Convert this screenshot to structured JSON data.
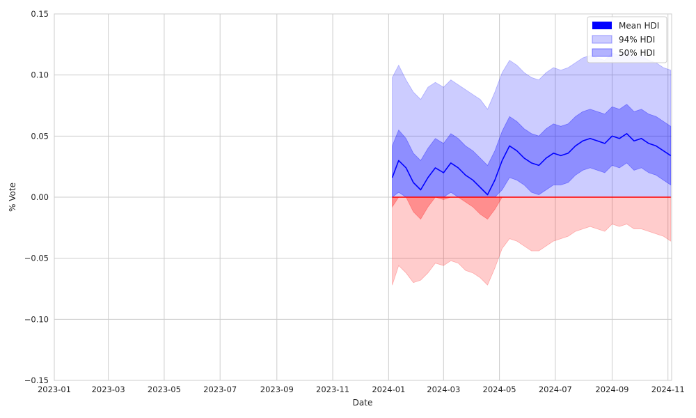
{
  "chart_data": {
    "type": "area",
    "title": "",
    "xlabel": "Date",
    "ylabel": "% Vote",
    "x_domain": [
      "2023-01-01",
      "2024-11-05"
    ],
    "ylim": [
      -0.15,
      0.15
    ],
    "yticks": [
      0.15,
      0.1,
      0.05,
      0.0,
      -0.05,
      -0.1,
      -0.15
    ],
    "ytick_labels": [
      "0.15",
      "0.10",
      "0.05",
      "0.00",
      "−0.05",
      "−0.10",
      "−0.15"
    ],
    "xticks": [
      "2023-01-01",
      "2023-03-01",
      "2023-05-01",
      "2023-07-01",
      "2023-09-01",
      "2023-11-01",
      "2024-01-01",
      "2024-03-01",
      "2024-05-01",
      "2024-07-01",
      "2024-09-01",
      "2024-11-01"
    ],
    "xtick_labels": [
      "2023-01",
      "2023-03",
      "2023-05",
      "2023-07",
      "2023-09",
      "2023-11",
      "2024-01",
      "2024-03",
      "2024-05",
      "2024-07",
      "2024-09",
      "2024-11"
    ],
    "grid": true,
    "legend_position": "top-right",
    "colors": {
      "positive": "#0000ff",
      "negative": "#ff0000",
      "grid": "#cccccc"
    },
    "legend": [
      {
        "label": "Mean HDI",
        "color": "#0000ff",
        "alpha": 1.0
      },
      {
        "label": "94% HDI",
        "color": "#0000ff",
        "alpha": 0.2
      },
      {
        "label": "50% HDI",
        "color": "#0000ff",
        "alpha": 0.3
      }
    ],
    "series": {
      "dates": [
        "2024-01-05",
        "2024-01-12",
        "2024-01-20",
        "2024-01-28",
        "2024-02-05",
        "2024-02-13",
        "2024-02-21",
        "2024-03-01",
        "2024-03-09",
        "2024-03-17",
        "2024-03-25",
        "2024-04-02",
        "2024-04-10",
        "2024-04-18",
        "2024-04-26",
        "2024-05-04",
        "2024-05-12",
        "2024-05-20",
        "2024-05-28",
        "2024-06-05",
        "2024-06-13",
        "2024-06-21",
        "2024-06-29",
        "2024-07-07",
        "2024-07-15",
        "2024-07-23",
        "2024-07-31",
        "2024-08-08",
        "2024-08-16",
        "2024-08-24",
        "2024-09-01",
        "2024-09-09",
        "2024-09-17",
        "2024-09-25",
        "2024-10-03",
        "2024-10-11",
        "2024-10-19",
        "2024-10-27",
        "2024-11-04"
      ],
      "mean": [
        0.016,
        0.03,
        0.024,
        0.012,
        0.006,
        0.016,
        0.024,
        0.02,
        0.028,
        0.024,
        0.018,
        0.014,
        0.008,
        0.002,
        0.014,
        0.03,
        0.042,
        0.038,
        0.032,
        0.028,
        0.026,
        0.032,
        0.036,
        0.034,
        0.036,
        0.042,
        0.046,
        0.048,
        0.046,
        0.044,
        0.05,
        0.048,
        0.052,
        0.046,
        0.048,
        0.044,
        0.042,
        0.038,
        0.034
      ],
      "hdi50_low": [
        -0.008,
        0.004,
        0.0,
        -0.012,
        -0.018,
        -0.008,
        0.0,
        -0.002,
        0.004,
        0.0,
        -0.004,
        -0.008,
        -0.014,
        -0.018,
        -0.01,
        0.006,
        0.016,
        0.014,
        0.01,
        0.004,
        0.002,
        0.006,
        0.01,
        0.01,
        0.012,
        0.018,
        0.022,
        0.024,
        0.022,
        0.02,
        0.026,
        0.024,
        0.028,
        0.022,
        0.024,
        0.02,
        0.018,
        0.014,
        0.01
      ],
      "hdi50_high": [
        0.042,
        0.055,
        0.048,
        0.036,
        0.03,
        0.04,
        0.048,
        0.044,
        0.052,
        0.048,
        0.042,
        0.038,
        0.032,
        0.026,
        0.038,
        0.054,
        0.066,
        0.062,
        0.056,
        0.052,
        0.05,
        0.056,
        0.06,
        0.058,
        0.06,
        0.066,
        0.07,
        0.072,
        0.07,
        0.068,
        0.074,
        0.072,
        0.076,
        0.07,
        0.072,
        0.068,
        0.066,
        0.062,
        0.058
      ],
      "hdi94_low": [
        -0.072,
        -0.056,
        -0.062,
        -0.07,
        -0.068,
        -0.062,
        -0.054,
        -0.056,
        -0.052,
        -0.054,
        -0.06,
        -0.062,
        -0.066,
        -0.072,
        -0.058,
        -0.042,
        -0.034,
        -0.036,
        -0.04,
        -0.044,
        -0.044,
        -0.04,
        -0.036,
        -0.034,
        -0.032,
        -0.028,
        -0.026,
        -0.024,
        -0.026,
        -0.028,
        -0.022,
        -0.024,
        -0.022,
        -0.026,
        -0.026,
        -0.028,
        -0.03,
        -0.032,
        -0.036
      ],
      "hdi94_high": [
        0.098,
        0.108,
        0.096,
        0.086,
        0.08,
        0.09,
        0.094,
        0.09,
        0.096,
        0.092,
        0.088,
        0.084,
        0.08,
        0.072,
        0.086,
        0.102,
        0.112,
        0.108,
        0.102,
        0.098,
        0.096,
        0.102,
        0.106,
        0.104,
        0.106,
        0.11,
        0.114,
        0.116,
        0.114,
        0.112,
        0.118,
        0.116,
        0.12,
        0.114,
        0.116,
        0.112,
        0.11,
        0.106,
        0.104
      ]
    }
  }
}
